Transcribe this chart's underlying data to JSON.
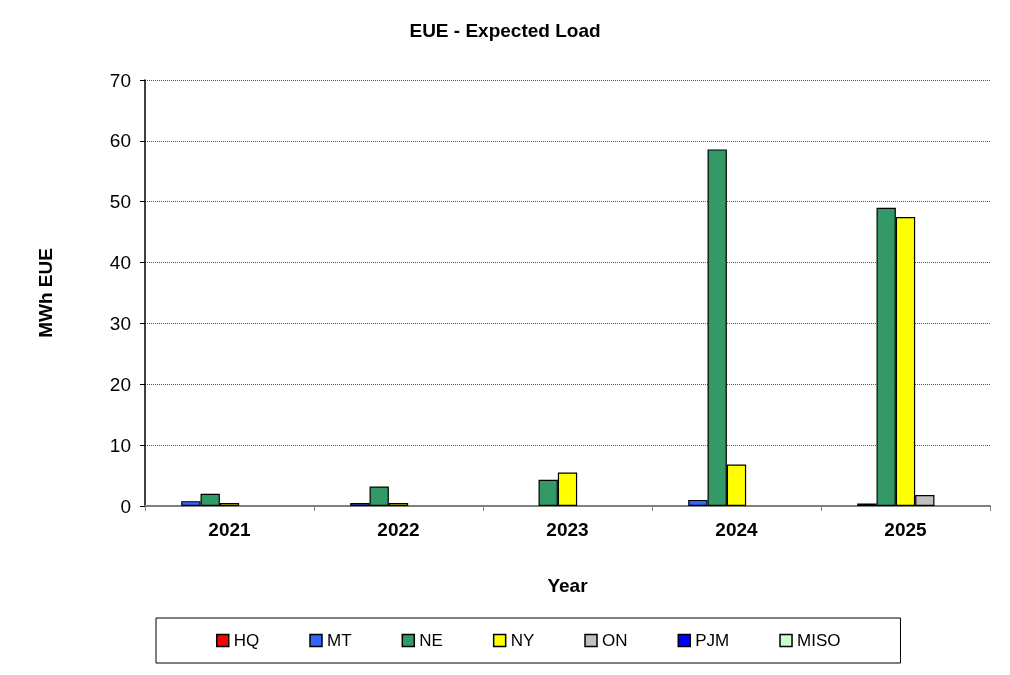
{
  "chart_data": {
    "type": "bar",
    "title": "EUE - Expected Load",
    "xlabel": "Year",
    "ylabel": "MWh EUE",
    "categories": [
      "2021",
      "2022",
      "2023",
      "2024",
      "2025"
    ],
    "series": [
      {
        "name": "HQ",
        "color": "#ff0000",
        "values": [
          0,
          0,
          0,
          0,
          0
        ]
      },
      {
        "name": "MT",
        "color": "#3366ff",
        "values": [
          0.8,
          0.5,
          0,
          1.0,
          0.4
        ]
      },
      {
        "name": "NE",
        "color": "#339966",
        "values": [
          2.0,
          3.2,
          4.3,
          58.6,
          49.0
        ]
      },
      {
        "name": "NY",
        "color": "#ffff00",
        "values": [
          0.5,
          0.5,
          5.5,
          6.8,
          47.5
        ]
      },
      {
        "name": "ON",
        "color": "#c0c0c0",
        "values": [
          0,
          0,
          0,
          0,
          1.8
        ]
      },
      {
        "name": "PJM",
        "color": "#0000ff",
        "values": [
          0,
          0,
          0,
          0,
          0
        ]
      },
      {
        "name": "MISO",
        "color": "#ccffcc",
        "values": [
          0,
          0,
          0,
          0,
          0
        ]
      }
    ],
    "ylim": [
      0,
      70
    ],
    "yticks": [
      0,
      10,
      20,
      30,
      40,
      50,
      60,
      70
    ],
    "grid": "y",
    "legend": "bottom"
  }
}
